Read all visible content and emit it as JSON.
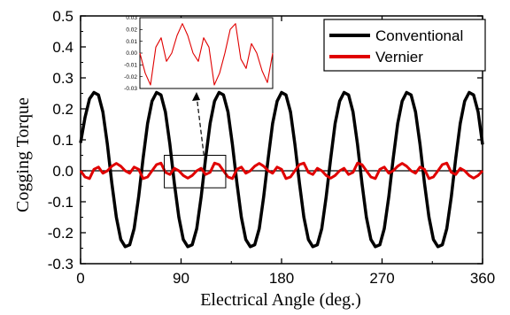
{
  "chart_data": [
    {
      "type": "line",
      "title": "",
      "xlabel": "Electrical Angle (deg.)",
      "ylabel": "Cogging Torque",
      "xlim": [
        0,
        360
      ],
      "ylim": [
        -0.3,
        0.5
      ],
      "xticks": [
        "0",
        "90",
        "180",
        "270",
        "360"
      ],
      "yticks": [
        "-0.3",
        "-0.2",
        "-0.1",
        "0.0",
        "0.1",
        "0.2",
        "0.3",
        "0.4",
        "0.5"
      ],
      "grid": false,
      "legend_position": "top-right",
      "zero_line": 0,
      "series": [
        {
          "name": "Conventional",
          "color": "#000000",
          "x": [
            0,
            4,
            8,
            12,
            16,
            20,
            24,
            28,
            32,
            36,
            40,
            44,
            48,
            52,
            56,
            60,
            64,
            68,
            72,
            76,
            80,
            84,
            88,
            92,
            96,
            100,
            104,
            108,
            112,
            116,
            120,
            124,
            128,
            132,
            136,
            140,
            144,
            148,
            152,
            156,
            160,
            164,
            168,
            172,
            176,
            180,
            184,
            188,
            192,
            196,
            200,
            204,
            208,
            212,
            216,
            220,
            224,
            228,
            232,
            236,
            240,
            244,
            248,
            252,
            256,
            260,
            264,
            268,
            272,
            276,
            280,
            284,
            288,
            292,
            296,
            300,
            304,
            308,
            312,
            316,
            320,
            324,
            328,
            332,
            336,
            340,
            344,
            348,
            352,
            356,
            360
          ],
          "y": [
            0.09,
            0.172,
            0.232,
            0.253,
            0.245,
            0.19,
            0.085,
            -0.04,
            -0.15,
            -0.222,
            -0.245,
            -0.239,
            -0.187,
            -0.084,
            0.04,
            0.153,
            0.225,
            0.253,
            0.245,
            0.19,
            0.085,
            -0.04,
            -0.15,
            -0.222,
            -0.245,
            -0.239,
            -0.187,
            -0.084,
            0.04,
            0.153,
            0.225,
            0.253,
            0.245,
            0.19,
            0.085,
            -0.04,
            -0.15,
            -0.222,
            -0.245,
            -0.239,
            -0.187,
            -0.084,
            0.04,
            0.153,
            0.225,
            0.253,
            0.245,
            0.19,
            0.085,
            -0.04,
            -0.15,
            -0.222,
            -0.245,
            -0.239,
            -0.187,
            -0.084,
            0.04,
            0.153,
            0.225,
            0.253,
            0.245,
            0.19,
            0.085,
            -0.04,
            -0.15,
            -0.222,
            -0.245,
            -0.239,
            -0.187,
            -0.084,
            0.04,
            0.153,
            0.225,
            0.253,
            0.245,
            0.19,
            0.085,
            -0.04,
            -0.15,
            -0.222,
            -0.245,
            -0.239,
            -0.187,
            -0.084,
            0.04,
            0.153,
            0.225,
            0.253,
            0.245,
            0.19,
            0.085
          ]
        },
        {
          "name": "Vernier",
          "color": "#e00000",
          "x": [
            0,
            4,
            8,
            12,
            16,
            20,
            24,
            28,
            32,
            36,
            40,
            44,
            48,
            52,
            56,
            60,
            64,
            68,
            72,
            76,
            80,
            84,
            88,
            92,
            96,
            100,
            104,
            108,
            112,
            116,
            120,
            124,
            128,
            132,
            136,
            140,
            144,
            148,
            152,
            156,
            160,
            164,
            168,
            172,
            176,
            180,
            184,
            188,
            192,
            196,
            200,
            204,
            208,
            212,
            216,
            220,
            224,
            228,
            232,
            236,
            240,
            244,
            248,
            252,
            256,
            260,
            264,
            268,
            272,
            276,
            280,
            284,
            288,
            292,
            296,
            300,
            304,
            308,
            312,
            316,
            320,
            324,
            328,
            332,
            336,
            340,
            344,
            348,
            352,
            356,
            360
          ],
          "y": [
            0.0,
            -0.02,
            -0.025,
            0.005,
            0.012,
            -0.008,
            0.0,
            0.015,
            0.024,
            0.015,
            0.0,
            -0.008,
            0.012,
            0.005,
            -0.025,
            -0.02,
            0.0,
            0.02,
            0.025,
            -0.005,
            -0.012,
            0.008,
            0.0,
            -0.015,
            -0.024,
            -0.015,
            0.0,
            0.008,
            -0.012,
            -0.005,
            0.025,
            0.02,
            0.0,
            -0.02,
            -0.025,
            0.005,
            0.012,
            -0.008,
            0.0,
            0.015,
            0.024,
            0.015,
            0.0,
            -0.008,
            0.012,
            0.005,
            -0.025,
            -0.02,
            0.0,
            0.02,
            0.025,
            -0.005,
            -0.012,
            0.008,
            0.0,
            -0.015,
            -0.024,
            -0.015,
            0.0,
            0.008,
            -0.012,
            -0.005,
            0.025,
            0.02,
            0.0,
            -0.02,
            -0.025,
            0.005,
            0.012,
            -0.008,
            0.0,
            0.015,
            0.024,
            0.015,
            0.0,
            -0.008,
            0.012,
            0.005,
            -0.025,
            -0.02,
            0.0,
            0.02,
            0.025,
            -0.005,
            -0.012,
            0.008,
            0.0,
            -0.015,
            -0.024,
            -0.015,
            0.0
          ]
        }
      ],
      "zoom_box": {
        "x_range": [
          75,
          130
        ],
        "y_range": [
          -0.055,
          0.05
        ]
      },
      "annotation": "dashed arrow from zoom box to inset"
    },
    {
      "type": "line",
      "title": "",
      "xlabel": "",
      "ylabel": "",
      "xlim": [
        0,
        1
      ],
      "ylim": [
        -0.03,
        0.03
      ],
      "yticks": [
        "0.03",
        "0.02",
        "0.01",
        "0.00",
        "-0.01",
        "-0.02",
        "-0.03"
      ],
      "series": [
        {
          "color": "#e00000",
          "x": [
            0,
            0.04,
            0.08,
            0.12,
            0.16,
            0.2,
            0.24,
            0.28,
            0.32,
            0.36,
            0.4,
            0.44,
            0.48,
            0.52,
            0.56,
            0.6,
            0.64,
            0.68,
            0.72,
            0.76,
            0.8,
            0.84,
            0.88,
            0.92,
            0.96,
            1.0
          ],
          "y": [
            0.0,
            -0.017,
            -0.027,
            0.005,
            0.013,
            -0.007,
            0.0,
            0.015,
            0.025,
            0.015,
            0.0,
            -0.007,
            0.013,
            0.005,
            -0.027,
            -0.017,
            0.0,
            0.02,
            0.025,
            -0.005,
            -0.013,
            0.008,
            0.0,
            -0.015,
            -0.025,
            0.0
          ]
        }
      ]
    }
  ]
}
